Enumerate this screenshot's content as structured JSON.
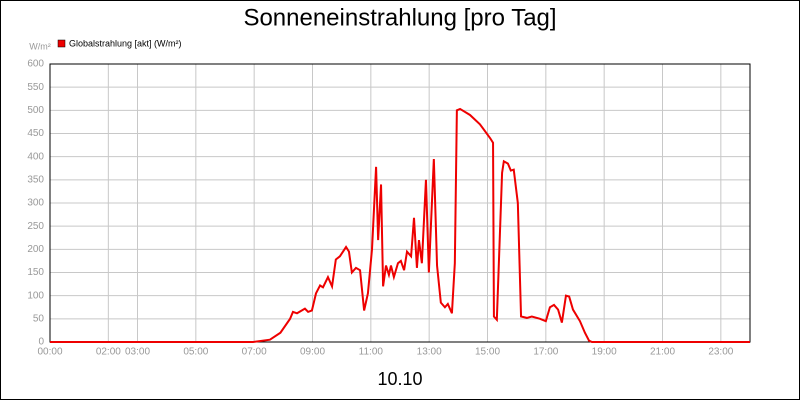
{
  "chart_data": {
    "type": "line",
    "title": "Sonneneinstrahlung [pro Tag]",
    "unit_label": "W/m²",
    "xlabel": "10.10",
    "series": [
      {
        "name": "Globalstrahlung [akt] (W/m²)",
        "color": "#ee0000",
        "x": [
          0,
          6.96,
          7.54,
          7.9,
          8.23,
          8.33,
          8.47,
          8.74,
          8.85,
          8.98,
          9.12,
          9.26,
          9.36,
          9.53,
          9.67,
          9.8,
          9.94,
          10.15,
          10.25,
          10.35,
          10.49,
          10.63,
          10.77,
          10.9,
          11.04,
          11.18,
          11.25,
          11.35,
          11.42,
          11.52,
          11.62,
          11.69,
          11.79,
          11.93,
          12.03,
          12.14,
          12.24,
          12.38,
          12.48,
          12.58,
          12.65,
          12.75,
          12.89,
          12.99,
          13.16,
          13.27,
          13.4,
          13.54,
          13.64,
          13.78,
          13.88,
          13.95,
          14.06,
          14.4,
          14.74,
          15.09,
          15.19,
          15.22,
          15.32,
          15.5,
          15.56,
          15.7,
          15.8,
          15.9,
          16.04,
          16.15,
          16.35,
          16.52,
          16.8,
          17.0,
          17.14,
          17.28,
          17.42,
          17.55,
          17.69,
          17.8,
          17.93,
          18.17,
          18.34,
          18.48,
          18.58,
          24
        ],
        "values": [
          0,
          0,
          5,
          20,
          50,
          65,
          62,
          72,
          65,
          68,
          105,
          122,
          118,
          140,
          120,
          178,
          185,
          205,
          195,
          150,
          160,
          155,
          68,
          105,
          200,
          378,
          220,
          340,
          120,
          165,
          145,
          165,
          140,
          170,
          175,
          155,
          195,
          185,
          268,
          160,
          220,
          170,
          350,
          150,
          395,
          165,
          85,
          75,
          82,
          62,
          170,
          500,
          503,
          490,
          470,
          440,
          430,
          55,
          48,
          365,
          390,
          385,
          370,
          372,
          300,
          55,
          52,
          55,
          50,
          45,
          75,
          80,
          70,
          42,
          100,
          98,
          70,
          45,
          20,
          3,
          0,
          0
        ]
      }
    ],
    "xlim": [
      0,
      24
    ],
    "xticks": [
      {
        "value": 0,
        "label": "00:00"
      },
      {
        "value": 2,
        "label": "02:00"
      },
      {
        "value": 3,
        "label": "03:00"
      },
      {
        "value": 5,
        "label": "05:00"
      },
      {
        "value": 7,
        "label": "07:00"
      },
      {
        "value": 9,
        "label": "09:00"
      },
      {
        "value": 11,
        "label": "11:00"
      },
      {
        "value": 13,
        "label": "13:00"
      },
      {
        "value": 15,
        "label": "15:00"
      },
      {
        "value": 17,
        "label": "17:00"
      },
      {
        "value": 19,
        "label": "19:00"
      },
      {
        "value": 21,
        "label": "21:00"
      },
      {
        "value": 23,
        "label": "23:00"
      }
    ],
    "ylim": [
      0,
      600
    ],
    "yticks": [
      0,
      50,
      100,
      150,
      200,
      250,
      300,
      350,
      400,
      450,
      500,
      550,
      600
    ],
    "grid": true
  }
}
